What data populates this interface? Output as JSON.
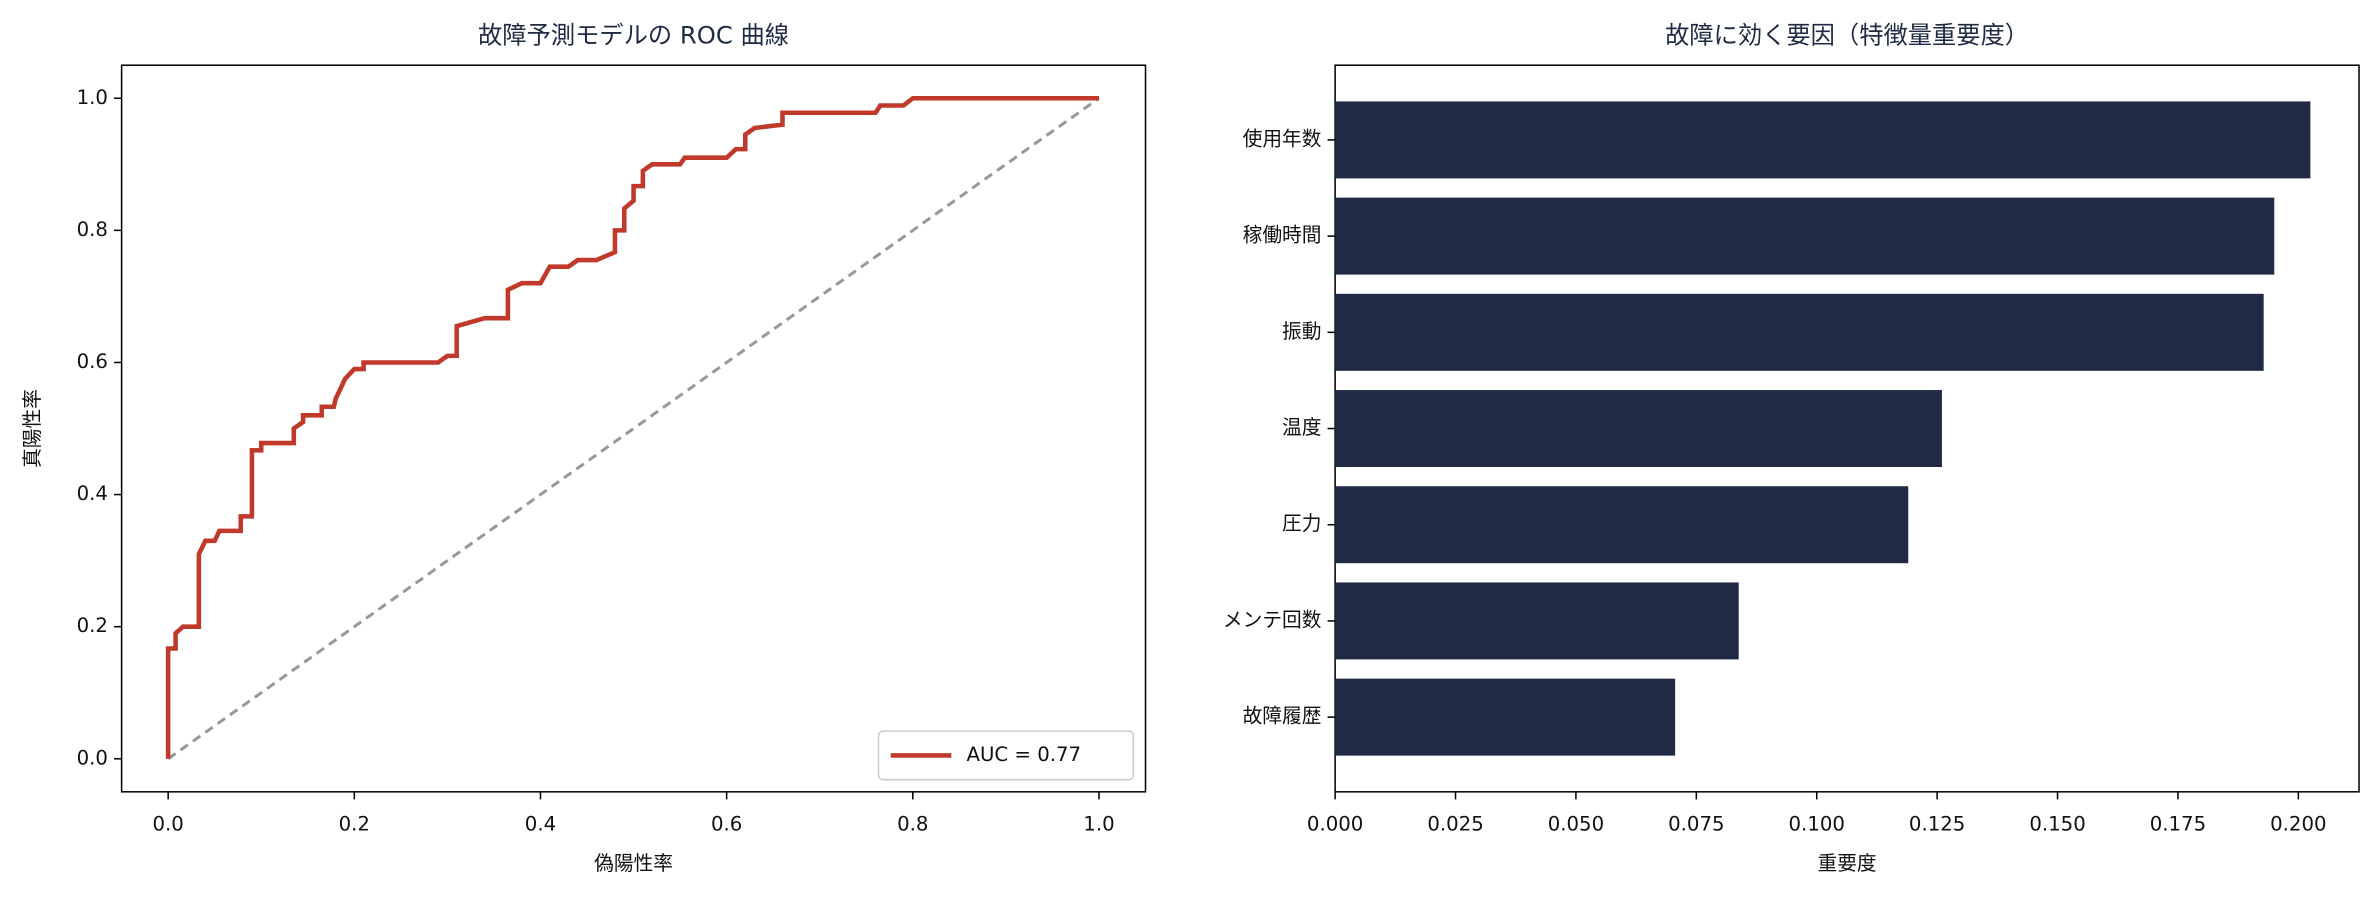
{
  "chart_data": [
    {
      "type": "line",
      "title": "故障予測モデルの ROC 曲線",
      "xlabel": "偽陽性率",
      "ylabel": "真陽性率",
      "xlim": [
        -0.05,
        1.05
      ],
      "ylim": [
        -0.05,
        1.05
      ],
      "xticks": [
        {
          "value": 0,
          "label": "0.0"
        },
        0.2,
        0.4,
        0.6,
        0.8,
        {
          "value": 1,
          "label": "1.0"
        }
      ],
      "yticks": [
        {
          "value": 0,
          "label": "0.0"
        },
        0.2,
        0.4,
        0.6,
        0.8,
        {
          "value": 1,
          "label": "1.0"
        }
      ],
      "legend": "lower right",
      "series": [
        {
          "name": "AUC = 0.77",
          "color": "#c0392b",
          "style": "solid",
          "x": [
            0,
            0,
            0.008,
            0.008,
            0.016,
            0.033,
            0.033,
            0.04,
            0.05,
            0.055,
            0.078,
            0.078,
            0.09,
            0.09,
            0.1,
            0.1,
            0.135,
            0.135,
            0.145,
            0.145,
            0.165,
            0.165,
            0.178,
            0.18,
            0.19,
            0.2,
            0.21,
            0.21,
            0.29,
            0.3,
            0.31,
            0.31,
            0.34,
            0.365,
            0.365,
            0.38,
            0.4,
            0.41,
            0.43,
            0.44,
            0.46,
            0.48,
            0.48,
            0.49,
            0.49,
            0.5,
            0.5,
            0.51,
            0.51,
            0.52,
            0.55,
            0.555,
            0.6,
            0.61,
            0.62,
            0.62,
            0.63,
            0.66,
            0.66,
            0.76,
            0.765,
            0.79,
            0.8,
            1
          ],
          "values": [
            0,
            0.167,
            0.167,
            0.19,
            0.2,
            0.2,
            0.31,
            0.33,
            0.33,
            0.345,
            0.345,
            0.367,
            0.367,
            0.467,
            0.467,
            0.478,
            0.478,
            0.5,
            0.51,
            0.52,
            0.52,
            0.533,
            0.533,
            0.545,
            0.575,
            0.59,
            0.59,
            0.6,
            0.6,
            0.61,
            0.61,
            0.655,
            0.667,
            0.667,
            0.71,
            0.72,
            0.72,
            0.745,
            0.745,
            0.755,
            0.755,
            0.767,
            0.8,
            0.8,
            0.833,
            0.845,
            0.867,
            0.867,
            0.89,
            0.9,
            0.9,
            0.91,
            0.91,
            0.923,
            0.923,
            0.945,
            0.955,
            0.96,
            0.978,
            0.978,
            0.989,
            0.989,
            1,
            1
          ]
        },
        {
          "color": "#999999",
          "style": "dashed",
          "x": [
            0,
            1
          ],
          "values": [
            0,
            1
          ]
        }
      ]
    },
    {
      "type": "barh",
      "title": "故障に効く要因（特徴量重要度）",
      "xlabel": "重要度",
      "color": "#1f2a44",
      "categories": [
        "使用年数",
        "稼働時間",
        "振動",
        "温度",
        "圧力",
        "メンテ回数",
        "故障履歴"
      ],
      "values": [
        0.2025,
        0.195,
        0.1928,
        0.126,
        0.119,
        0.0838,
        0.0706
      ],
      "xlim": [
        0,
        0.2126
      ],
      "xticks": [
        {
          "value": 0,
          "label": "0.000"
        },
        0.025,
        {
          "value": 0.05,
          "label": "0.050"
        },
        0.075,
        {
          "value": 0.1,
          "label": "0.100"
        },
        0.125,
        {
          "value": 0.15,
          "label": "0.150"
        },
        0.175,
        {
          "value": 0.2,
          "label": "0.200"
        }
      ]
    }
  ]
}
